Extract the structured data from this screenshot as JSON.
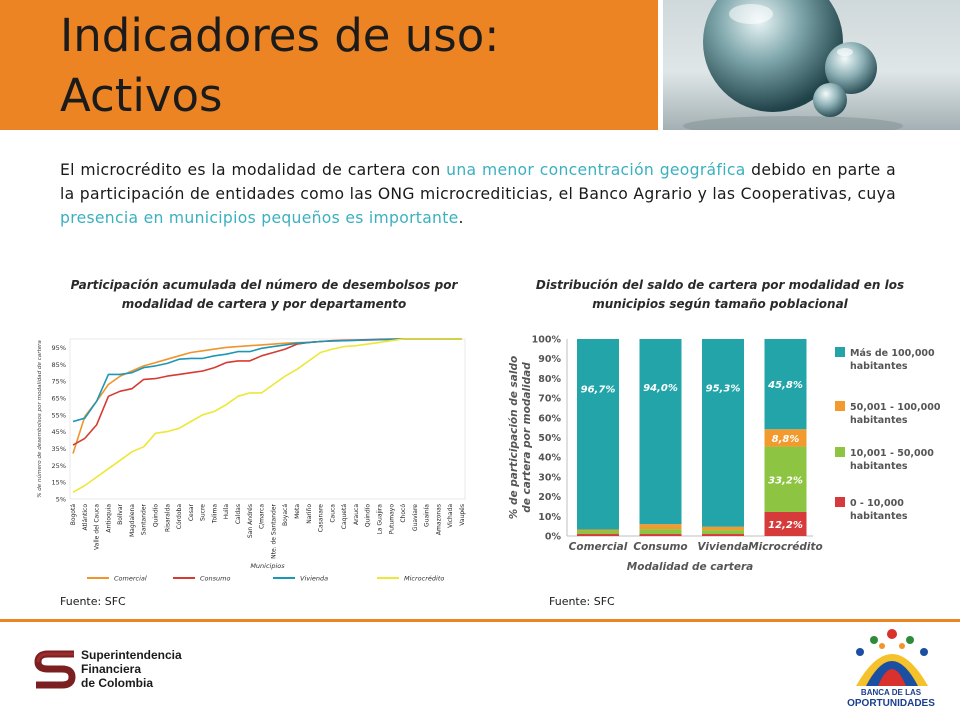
{
  "slide": {
    "title_line1": "Indicadores de uso:",
    "title_line2": "Activos",
    "paragraph": {
      "p1": "El microcrédito es la modalidad de cartera con ",
      "h1": "una menor concentración geográfica",
      "p2": " debido en parte a la participación de entidades como las ONG microcrediticias, el Banco Agrario y las Cooperativas, cuya ",
      "h2": "presencia en municipios pequeños es importante",
      "p3": "."
    },
    "left_caption": "Participación acumulada del número de desembolsos por modalidad de cartera y por departamento",
    "right_caption": "Distribución del saldo de cartera por modalidad  en los municipios según tamaño poblacional",
    "source_left": "Fuente: SFC",
    "source_right": "Fuente: SFC",
    "highlight_color": "#3ab0c0",
    "accent_color": "#ec8424"
  },
  "footer": {
    "sf_line1": "Superintendencia",
    "sf_line2": "Financiera",
    "sf_line3": "de Colombia",
    "bo_line1": "BANCA DE LAS",
    "bo_line2": "OPORTUNIDADES"
  },
  "chart_data": [
    {
      "type": "line",
      "title": "Participación acumulada del número de desembolsos por modalidad de cartera y por departamento",
      "ylabel": "% de número de desembolsos por modalidad de cartera",
      "xlabel": "Municipios",
      "ylim": [
        5,
        100
      ],
      "yticks": [
        "5%",
        "15%",
        "25%",
        "35%",
        "45%",
        "55%",
        "65%",
        "75%",
        "85%",
        "95%"
      ],
      "ytick_values": [
        5,
        15,
        25,
        35,
        45,
        55,
        65,
        75,
        85,
        95
      ],
      "legend_position": "bottom",
      "categories": [
        "Bogotá",
        "Atlántico",
        "Valle del Cauca",
        "Antioquia",
        "Bolívar",
        "Magdalena",
        "Santander",
        "Quindío",
        "Risaralda",
        "Córdoba",
        "Cesar",
        "Sucre",
        "Tolima",
        "Huila",
        "Caldas",
        "San Andrés",
        "C/marca",
        "Nte. de Santander",
        "Boyacá",
        "Meta",
        "Nariño",
        "Casanare",
        "Cauca",
        "Caquetá",
        "Arauca",
        "Quindío",
        "La Guajira",
        "Putumayo",
        "Chocó",
        "Guaviare",
        "Guainía",
        "Amazonas",
        "Vichada",
        "Vaupés"
      ],
      "grid": false,
      "series": [
        {
          "name": "Comercial",
          "color": "#f0942b",
          "values": [
            32,
            54,
            63,
            73,
            78,
            81,
            84,
            86,
            88,
            90,
            92,
            93,
            94,
            95,
            95.5,
            96,
            96.5,
            97,
            97.5,
            97.8,
            98,
            98.5,
            98.8,
            99,
            99.2,
            99.4,
            99.6,
            99.8,
            100,
            100,
            100,
            100,
            100,
            100
          ]
        },
        {
          "name": "Consumo",
          "color": "#d63b32",
          "values": [
            37,
            41,
            49,
            66,
            69,
            70.5,
            76,
            76.5,
            78,
            79,
            80,
            81,
            83,
            86,
            87,
            87,
            90,
            92,
            94,
            97,
            98,
            98.5,
            99,
            99.2,
            99.4,
            99.6,
            99.8,
            100,
            100,
            100,
            100,
            100,
            100,
            100
          ]
        },
        {
          "name": "Vivienda",
          "color": "#1b97b7",
          "values": [
            51,
            53,
            63,
            79,
            79,
            80,
            83,
            84,
            85.5,
            88,
            88.5,
            88.5,
            90,
            91,
            92.5,
            92.5,
            94.5,
            95.5,
            96.5,
            97.5,
            98,
            98.5,
            98.8,
            99,
            99.2,
            99.4,
            99.6,
            99.8,
            100,
            100,
            100,
            100,
            100,
            100
          ]
        },
        {
          "name": "Microcrédito",
          "color": "#ede737",
          "values": [
            9,
            13,
            18,
            23,
            28,
            33,
            36,
            44,
            45,
            47,
            51,
            55,
            57,
            61,
            66,
            68,
            68,
            73,
            78,
            82,
            87,
            92,
            94,
            95.5,
            96,
            97,
            98,
            99,
            100,
            100,
            100,
            100,
            100,
            100
          ]
        }
      ]
    },
    {
      "type": "bar",
      "stacked": true,
      "xlabel": "Modalidad de cartera",
      "ylabel": "% de participación de saldo de cartera por modalidad",
      "ylim": [
        0,
        100
      ],
      "yticks": [
        "0%",
        "10%",
        "20%",
        "30%",
        "40%",
        "50%",
        "60%",
        "70%",
        "80%",
        "90%",
        "100%"
      ],
      "categories": [
        "Comercial",
        "Consumo",
        "Vivienda",
        "Microcrédito"
      ],
      "legend_position": "right",
      "series": [
        {
          "name": "0 - 10,000 habitantes",
          "color": "#d63a3a",
          "values": [
            1.0,
            1.0,
            1.0,
            12.2
          ],
          "labels": [
            "",
            "",
            "",
            "12,2%"
          ]
        },
        {
          "name": "10,001 - 50,000 habitantes",
          "color": "#8dc542",
          "values": [
            1.8,
            2.5,
            2.0,
            33.2
          ],
          "labels": [
            "",
            "",
            "",
            "33,2%"
          ]
        },
        {
          "name": "50,001 - 100,000 habitantes",
          "color": "#f29a2e",
          "values": [
            0.5,
            2.5,
            1.7,
            8.8
          ],
          "labels": [
            "",
            "",
            "",
            "8,8%"
          ]
        },
        {
          "name": "Más de 100,000 habitantes",
          "color": "#22a4a8",
          "values": [
            96.7,
            94.0,
            95.3,
            45.8
          ],
          "labels": [
            "96,7%",
            "94,0%",
            "95,3%",
            "45,8%"
          ]
        }
      ]
    }
  ]
}
